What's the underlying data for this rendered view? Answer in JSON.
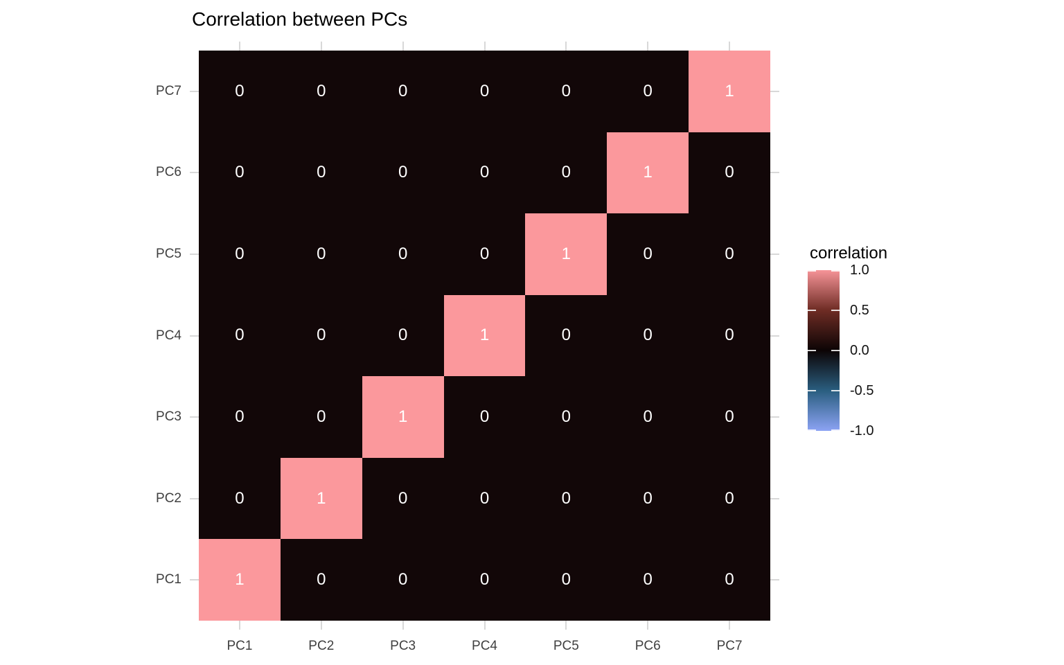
{
  "chart_data": {
    "type": "heatmap",
    "title": "Correlation between PCs",
    "x_categories": [
      "PC1",
      "PC2",
      "PC3",
      "PC4",
      "PC5",
      "PC6",
      "PC7"
    ],
    "y_categories_top_to_bottom": [
      "PC7",
      "PC6",
      "PC5",
      "PC4",
      "PC3",
      "PC2",
      "PC1"
    ],
    "matrix_rows_top_to_bottom": [
      [
        0,
        0,
        0,
        0,
        0,
        0,
        1
      ],
      [
        0,
        0,
        0,
        0,
        0,
        1,
        0
      ],
      [
        0,
        0,
        0,
        0,
        1,
        0,
        0
      ],
      [
        0,
        0,
        0,
        1,
        0,
        0,
        0
      ],
      [
        0,
        0,
        1,
        0,
        0,
        0,
        0
      ],
      [
        0,
        1,
        0,
        0,
        0,
        0,
        0
      ],
      [
        1,
        0,
        0,
        0,
        0,
        0,
        0
      ]
    ],
    "value_range": [
      -1.0,
      1.0
    ],
    "grid": "off",
    "colors": {
      "value_colors": {
        "1": "#fb989c",
        "0": "#120708"
      },
      "cell_text": "#ffffff",
      "axis_text": "#404040",
      "axis_tick": "#d8d8d8"
    },
    "legend": {
      "title": "correlation",
      "position": "right",
      "tick_labels": [
        "1.0",
        "0.5",
        "0.0",
        "-0.5",
        "-1.0"
      ],
      "gradient_stops": [
        {
          "pos": 0.0,
          "color": "#f69498"
        },
        {
          "pos": 0.25,
          "color": "#6e2c24"
        },
        {
          "pos": 0.5,
          "color": "#0c0405"
        },
        {
          "pos": 0.75,
          "color": "#2a5e80"
        },
        {
          "pos": 1.0,
          "color": "#8ca3f4"
        }
      ]
    }
  }
}
